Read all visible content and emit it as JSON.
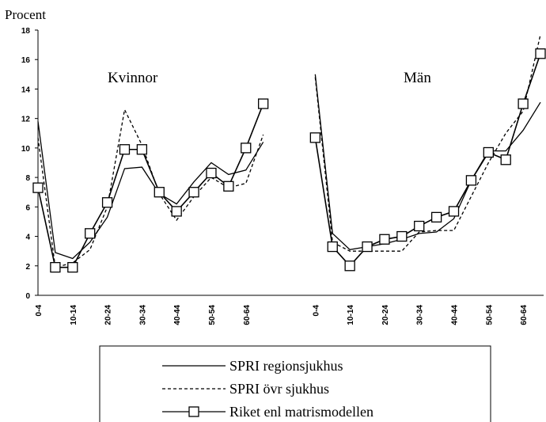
{
  "chart_data": {
    "type": "line",
    "y_label": "Procent",
    "annotations": [
      "Kvinnor",
      "Män"
    ],
    "categories": [
      "0-4",
      null,
      "10-14",
      null,
      "20-24",
      null,
      "30-34",
      null,
      "40-44",
      null,
      "50-54",
      null,
      "60-64",
      null,
      null,
      null,
      "0-4",
      null,
      "10-14",
      null,
      "20-24",
      null,
      "30-34",
      null,
      "40-44",
      null,
      "50-54",
      null,
      "60-64",
      null
    ],
    "series": [
      {
        "name": "SPRI regionsjukhus",
        "color": "#000000",
        "style": "solid",
        "marker": false,
        "values": [
          11.8,
          2.9,
          2.5,
          3.6,
          5.3,
          8.6,
          8.7,
          6.9,
          6.2,
          7.7,
          9.0,
          8.2,
          8.5,
          10.4,
          null,
          null,
          15.0,
          4.2,
          3.1,
          3.3,
          3.5,
          3.8,
          4.2,
          4.3,
          5.2,
          7.8,
          9.8,
          9.8,
          11.2,
          13.1
        ]
      },
      {
        "name": "SPRI övr sjukhus",
        "color": "#000000",
        "style": "dashed",
        "marker": false,
        "values": [
          10.7,
          1.9,
          2.2,
          3.1,
          6.0,
          12.6,
          10.2,
          6.9,
          5.1,
          6.7,
          8.0,
          7.3,
          7.6,
          10.9,
          null,
          null,
          14.8,
          3.6,
          3.0,
          3.0,
          3.0,
          3.0,
          4.3,
          4.4,
          4.4,
          6.7,
          9.0,
          11.0,
          12.5,
          17.7
        ]
      },
      {
        "name": "Riket enl matrismodellen",
        "color": "#000000",
        "style": "solid",
        "marker": true,
        "values": [
          7.3,
          1.9,
          1.9,
          4.2,
          6.3,
          9.9,
          9.9,
          7.0,
          5.7,
          7.0,
          8.3,
          7.4,
          10.0,
          13.0,
          null,
          null,
          10.7,
          3.3,
          2.0,
          3.3,
          3.8,
          4.0,
          4.7,
          5.3,
          5.7,
          7.8,
          9.7,
          9.2,
          13.0,
          16.4
        ]
      }
    ],
    "ylim": [
      0,
      18
    ],
    "yticks": [
      0,
      2,
      4,
      6,
      8,
      10,
      12,
      14,
      16,
      18
    ],
    "grid": false
  }
}
